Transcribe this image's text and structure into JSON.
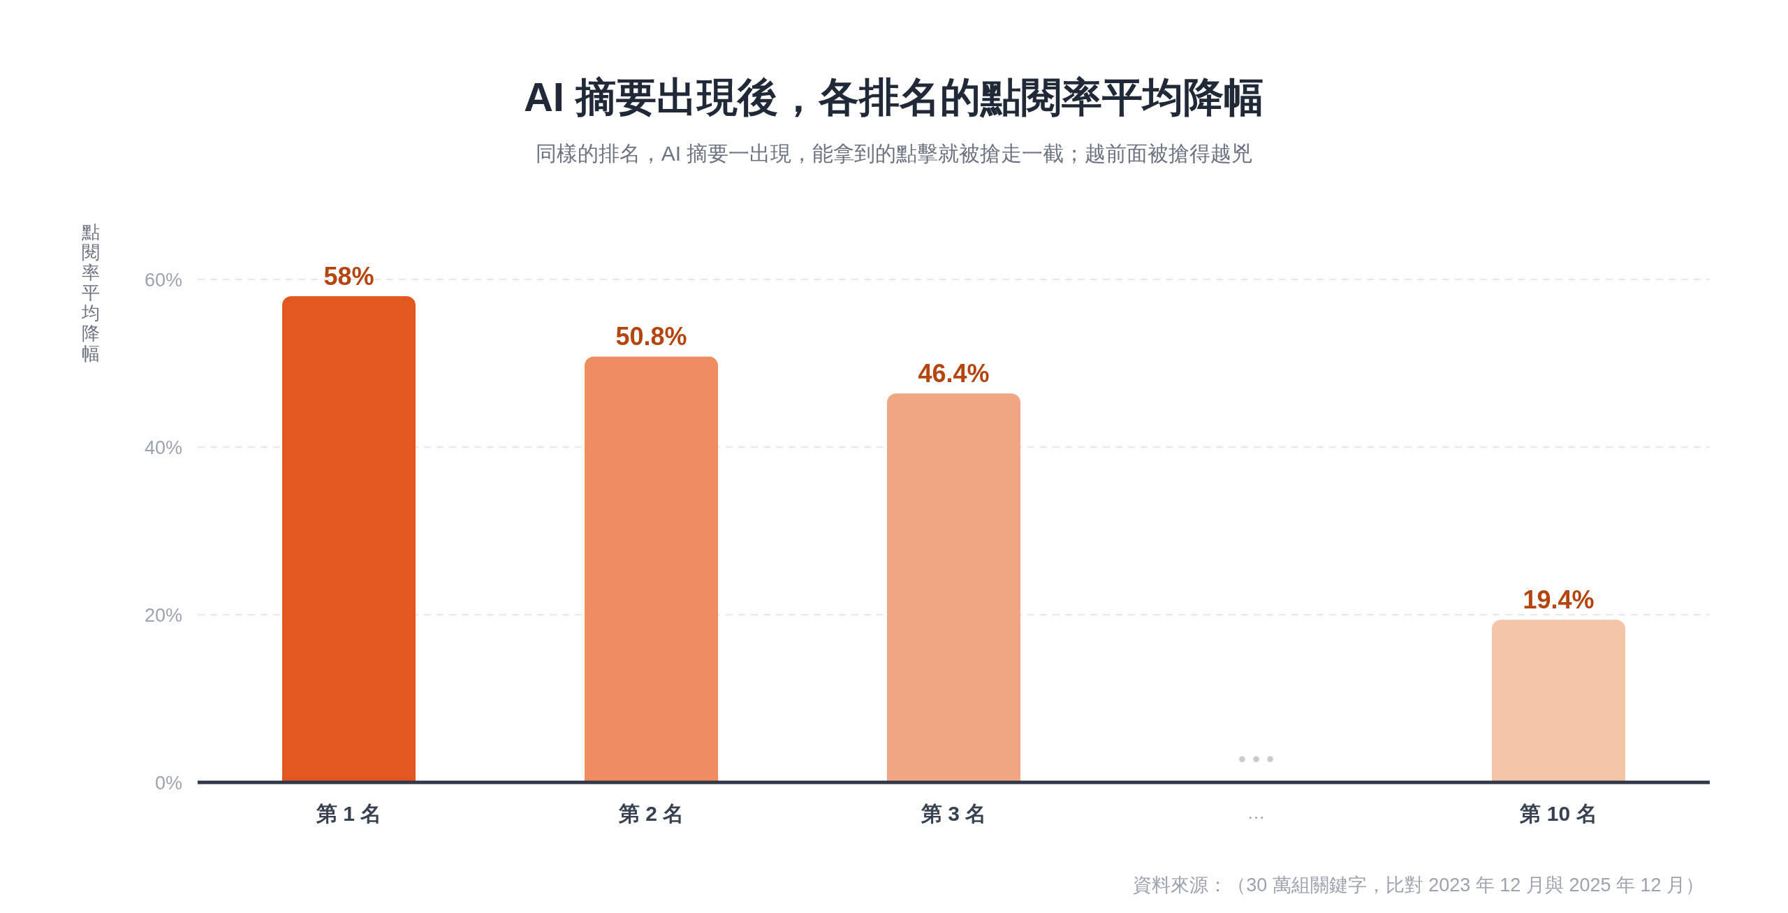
{
  "chart_data": {
    "type": "bar",
    "title": "AI 摘要出現後，各排名的點閱率平均降幅",
    "subtitle": "同樣的排名，AI 摘要一出現，能拿到的點擊就被搶走一截；越前面被搶得越兇",
    "ylabel": "點閱率平均降幅",
    "categories": [
      "第 1 名",
      "第 2 名",
      "第 3 名",
      "…",
      "第 10 名"
    ],
    "values": [
      58,
      50.8,
      46.4,
      null,
      19.4
    ],
    "colors": [
      "#e1571f",
      "#ee8d5f",
      "#f1a684",
      null,
      "#f5c5a8"
    ],
    "value_labels": [
      "58%",
      "50.8%",
      "46.4%",
      null,
      "19.4%"
    ],
    "ylim": [
      0,
      60
    ],
    "yticks": [
      {
        "value": 0,
        "label": "0%"
      },
      {
        "value": 20,
        "label": "20%"
      },
      {
        "value": 40,
        "label": "40%"
      },
      {
        "value": 60,
        "label": "60%"
      }
    ],
    "grid": "y",
    "annotations": [
      "•••",
      "資料來源：（30 萬組關鍵字，比對 2023 年 12 月與 2025 年 12 月）"
    ]
  }
}
